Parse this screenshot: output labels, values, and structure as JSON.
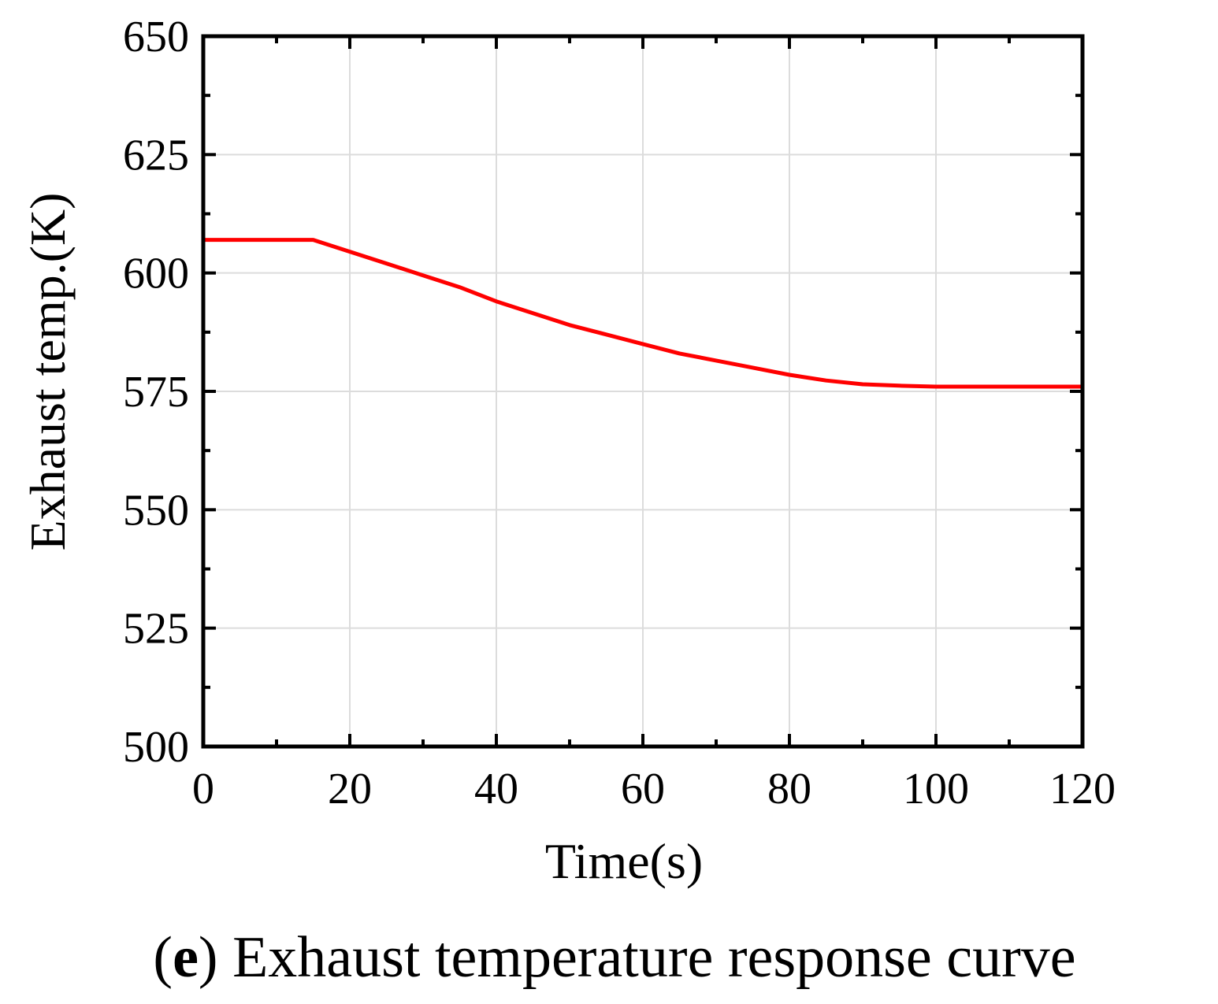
{
  "caption": {
    "open_paren": "(",
    "letter": "e",
    "close_paren": ")",
    "text": " Exhaust temperature response curve"
  },
  "colors": {
    "series": "#ff0000",
    "grid": "#dcdcdc",
    "axis": "#000000"
  },
  "chart_data": {
    "type": "line",
    "title": "",
    "xlabel": "Time(s)",
    "ylabel": "Exhaust temp.(K)",
    "xlim": [
      0,
      120
    ],
    "ylim": [
      500,
      650
    ],
    "xticks": [
      0,
      20,
      40,
      60,
      80,
      100,
      120
    ],
    "yticks": [
      500,
      525,
      550,
      575,
      600,
      625,
      650
    ],
    "x_minor_step": 10,
    "y_minor_step": 12.5,
    "grid": true,
    "legend": "none",
    "series": [
      {
        "color": "#ff0000",
        "x": [
          0,
          15,
          20,
          25,
          30,
          35,
          40,
          45,
          50,
          55,
          60,
          65,
          70,
          75,
          80,
          85,
          90,
          95,
          100,
          105,
          110,
          115,
          120
        ],
        "y": [
          607,
          607,
          604.5,
          602,
          599.5,
          597,
          594,
          591.5,
          589,
          587,
          585,
          583,
          581.5,
          580,
          578.5,
          577.3,
          576.5,
          576.2,
          576,
          576,
          576,
          576,
          576
        ]
      }
    ]
  }
}
